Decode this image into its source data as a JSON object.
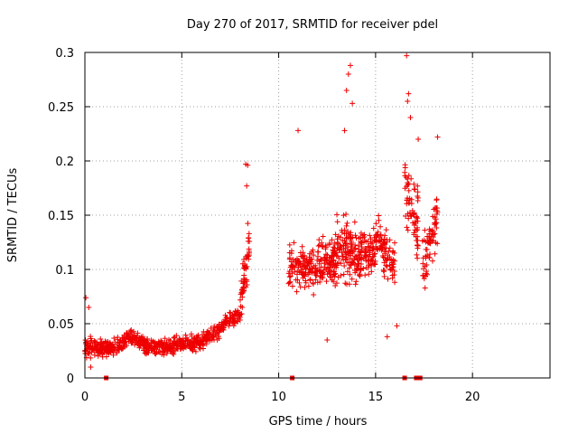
{
  "chart_data": {
    "type": "scatter",
    "title": "Day 270 of 2017, SRMTID for receiver pdel",
    "xlabel": "GPS time / hours",
    "ylabel": "SRMTID / TECUs",
    "xlim": [
      0,
      24
    ],
    "ylim": [
      0,
      0.3
    ],
    "xticks": [
      0,
      5,
      10,
      15,
      20
    ],
    "yticks": [
      0,
      0.05,
      0.1,
      0.15,
      0.2,
      0.25,
      0.3
    ],
    "xtick_labels": [
      "0",
      "5",
      "10",
      "15",
      "20"
    ],
    "ytick_labels": [
      "0",
      "0.05",
      "0.1",
      "0.15",
      "0.2",
      "0.25",
      "0.3"
    ],
    "grid": true,
    "marker": "plus",
    "color": "#ee0000",
    "zero_markers_x": [
      1.1,
      10.7,
      16.5,
      17.1,
      17.3
    ],
    "segments": [
      {
        "x_start": 0.0,
        "x_end": 1.0,
        "y_start": 0.028,
        "y_end": 0.028,
        "spread": 0.012,
        "points": 90
      },
      {
        "x_start": 1.0,
        "x_end": 2.0,
        "y_start": 0.027,
        "y_end": 0.032,
        "spread": 0.011,
        "points": 80
      },
      {
        "x_start": 2.0,
        "x_end": 3.0,
        "y_start": 0.035,
        "y_end": 0.035,
        "spread": 0.011,
        "points": 85
      },
      {
        "x_start": 3.0,
        "x_end": 4.0,
        "y_start": 0.03,
        "y_end": 0.028,
        "spread": 0.01,
        "points": 85
      },
      {
        "x_start": 4.0,
        "x_end": 5.0,
        "y_start": 0.028,
        "y_end": 0.031,
        "spread": 0.01,
        "points": 85
      },
      {
        "x_start": 5.0,
        "x_end": 6.0,
        "y_start": 0.032,
        "y_end": 0.033,
        "spread": 0.01,
        "points": 80
      },
      {
        "x_start": 6.0,
        "x_end": 7.0,
        "y_start": 0.034,
        "y_end": 0.045,
        "spread": 0.01,
        "points": 80
      },
      {
        "x_start": 7.0,
        "x_end": 8.0,
        "y_start": 0.048,
        "y_end": 0.06,
        "spread": 0.01,
        "points": 75
      },
      {
        "x_start": 8.0,
        "x_end": 8.5,
        "y_start": 0.06,
        "y_end": 0.13,
        "spread": 0.035,
        "points": 60
      },
      {
        "x_start": 10.5,
        "x_end": 12.0,
        "y_start": 0.1,
        "y_end": 0.1,
        "spread": 0.028,
        "points": 130
      },
      {
        "x_start": 12.0,
        "x_end": 13.0,
        "y_start": 0.105,
        "y_end": 0.11,
        "spread": 0.03,
        "points": 110
      },
      {
        "x_start": 13.0,
        "x_end": 14.0,
        "y_start": 0.12,
        "y_end": 0.115,
        "spread": 0.04,
        "points": 110
      },
      {
        "x_start": 14.0,
        "x_end": 15.0,
        "y_start": 0.11,
        "y_end": 0.12,
        "spread": 0.03,
        "points": 100
      },
      {
        "x_start": 15.0,
        "x_end": 16.0,
        "y_start": 0.13,
        "y_end": 0.1,
        "spread": 0.03,
        "points": 90
      },
      {
        "x_start": 16.5,
        "x_end": 17.2,
        "y_start": 0.18,
        "y_end": 0.14,
        "spread": 0.045,
        "points": 70
      },
      {
        "x_start": 17.4,
        "x_end": 18.2,
        "y_start": 0.1,
        "y_end": 0.15,
        "spread": 0.035,
        "points": 70
      }
    ],
    "outliers": [
      {
        "x": 0.05,
        "y": 0.074
      },
      {
        "x": 0.2,
        "y": 0.065
      },
      {
        "x": 0.3,
        "y": 0.01
      },
      {
        "x": 8.4,
        "y": 0.196
      },
      {
        "x": 8.35,
        "y": 0.177
      },
      {
        "x": 8.3,
        "y": 0.197
      },
      {
        "x": 11.0,
        "y": 0.228
      },
      {
        "x": 13.7,
        "y": 0.288
      },
      {
        "x": 13.6,
        "y": 0.28
      },
      {
        "x": 13.5,
        "y": 0.265
      },
      {
        "x": 13.8,
        "y": 0.253
      },
      {
        "x": 13.4,
        "y": 0.228
      },
      {
        "x": 16.6,
        "y": 0.297
      },
      {
        "x": 16.7,
        "y": 0.262
      },
      {
        "x": 16.65,
        "y": 0.255
      },
      {
        "x": 16.8,
        "y": 0.24
      },
      {
        "x": 18.2,
        "y": 0.222
      },
      {
        "x": 17.2,
        "y": 0.22
      },
      {
        "x": 12.5,
        "y": 0.035
      },
      {
        "x": 15.6,
        "y": 0.038
      },
      {
        "x": 16.1,
        "y": 0.048
      }
    ]
  }
}
